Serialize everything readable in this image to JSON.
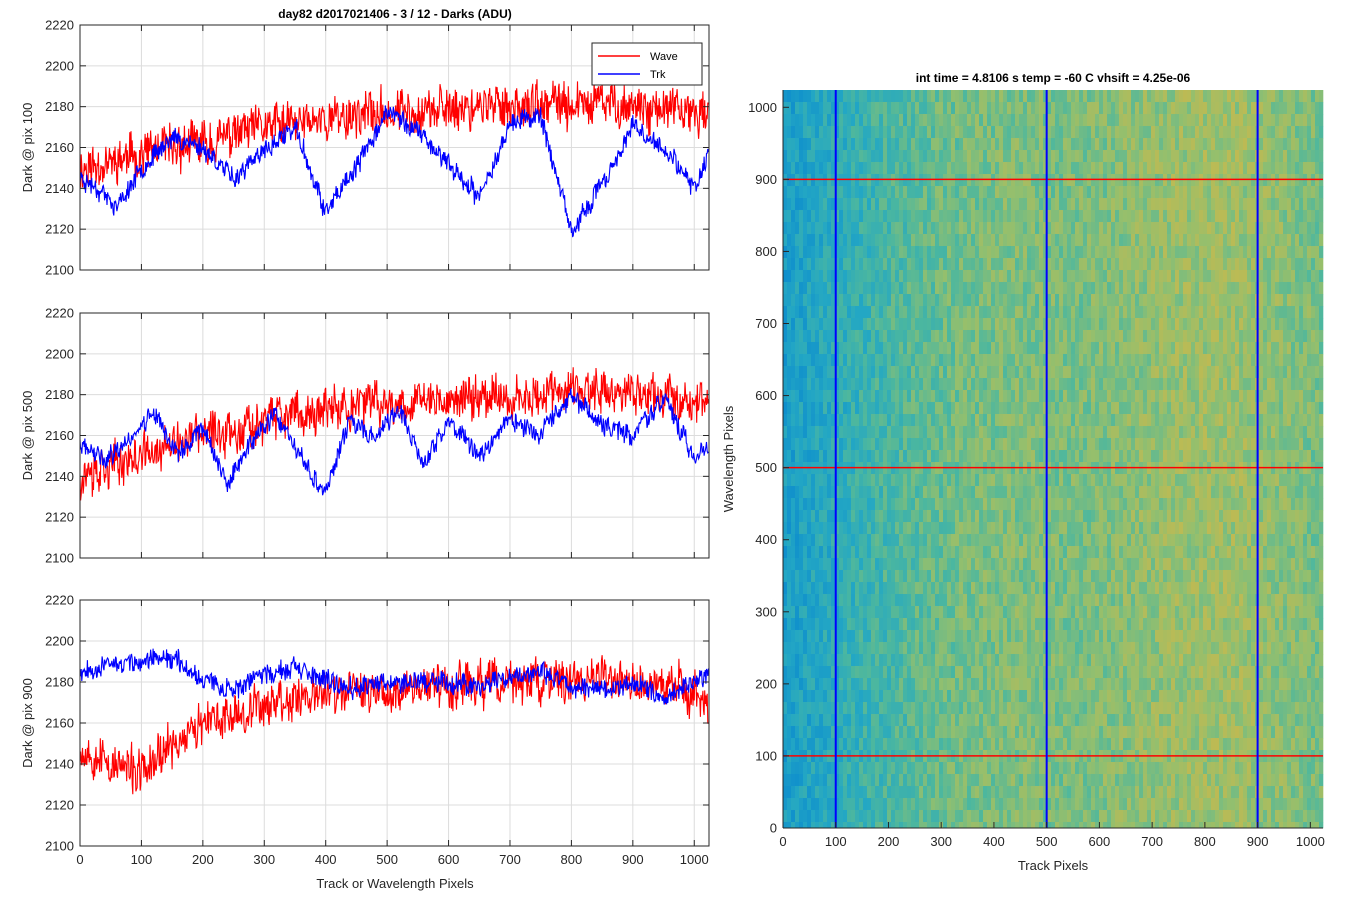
{
  "figure": {
    "title": "day82 d2017021406 - 3 / 12 - Darks (ADU)",
    "shared_xlabel": "Track or Wavelength Pixels"
  },
  "colors": {
    "wave": "#ff0000",
    "trk": "#0000ff",
    "grid": "#dcdcdc",
    "axis": "#262626"
  },
  "chart_data": [
    {
      "type": "line",
      "ylabel": "Dark @ pix 100",
      "xlim": [
        0,
        1024
      ],
      "ylim": [
        2100,
        2220
      ],
      "xticks": [
        0,
        100,
        200,
        300,
        400,
        500,
        600,
        700,
        800,
        900,
        1000
      ],
      "yticks": [
        2100,
        2120,
        2140,
        2160,
        2180,
        2200,
        2220
      ],
      "grid": true,
      "legend": {
        "position": "top-right",
        "entries": [
          "Wave",
          "Trk"
        ]
      },
      "series": [
        {
          "name": "Wave",
          "color": "#ff0000",
          "noise": 11,
          "seed": 11,
          "x": [
            0,
            50,
            100,
            150,
            200,
            250,
            300,
            350,
            400,
            450,
            500,
            550,
            600,
            650,
            700,
            750,
            800,
            850,
            900,
            950,
            1000,
            1024
          ],
          "y": [
            2150,
            2153,
            2157,
            2160,
            2162,
            2166,
            2170,
            2172,
            2174,
            2176,
            2177,
            2178,
            2179,
            2180,
            2181,
            2180,
            2181,
            2182,
            2180,
            2178,
            2177,
            2178
          ]
        },
        {
          "name": "Trk",
          "color": "#0000ff",
          "noise": 5,
          "seed": 23,
          "x": [
            0,
            30,
            60,
            100,
            150,
            200,
            250,
            300,
            350,
            400,
            450,
            500,
            550,
            600,
            650,
            700,
            750,
            800,
            850,
            900,
            950,
            1000,
            1024
          ],
          "y": [
            2145,
            2140,
            2130,
            2150,
            2165,
            2160,
            2145,
            2158,
            2170,
            2128,
            2150,
            2178,
            2168,
            2152,
            2135,
            2172,
            2176,
            2118,
            2142,
            2170,
            2160,
            2140,
            2158
          ]
        }
      ]
    },
    {
      "type": "line",
      "ylabel": "Dark @ pix 500",
      "xlim": [
        0,
        1024
      ],
      "ylim": [
        2100,
        2220
      ],
      "xticks": [
        0,
        100,
        200,
        300,
        400,
        500,
        600,
        700,
        800,
        900,
        1000
      ],
      "yticks": [
        2100,
        2120,
        2140,
        2160,
        2180,
        2200,
        2220
      ],
      "grid": true,
      "series": [
        {
          "name": "Wave",
          "color": "#ff0000",
          "noise": 11,
          "seed": 37,
          "x": [
            0,
            50,
            100,
            150,
            200,
            250,
            300,
            350,
            400,
            450,
            500,
            550,
            600,
            650,
            700,
            750,
            800,
            850,
            900,
            950,
            1000,
            1024
          ],
          "y": [
            2140,
            2145,
            2150,
            2155,
            2160,
            2163,
            2167,
            2170,
            2172,
            2174,
            2176,
            2177,
            2178,
            2179,
            2180,
            2181,
            2182,
            2181,
            2180,
            2179,
            2178,
            2178
          ]
        },
        {
          "name": "Trk",
          "color": "#0000ff",
          "noise": 5,
          "seed": 41,
          "x": [
            0,
            40,
            80,
            120,
            160,
            200,
            240,
            280,
            320,
            360,
            400,
            440,
            480,
            520,
            560,
            600,
            650,
            700,
            750,
            800,
            850,
            900,
            950,
            1000,
            1024
          ],
          "y": [
            2155,
            2148,
            2158,
            2172,
            2150,
            2165,
            2135,
            2158,
            2170,
            2148,
            2132,
            2168,
            2160,
            2172,
            2145,
            2168,
            2150,
            2168,
            2160,
            2180,
            2165,
            2160,
            2178,
            2150,
            2155
          ]
        }
      ]
    },
    {
      "type": "line",
      "ylabel": "Dark @ pix 900",
      "xlabel": "Track or Wavelength Pixels",
      "xlim": [
        0,
        1024
      ],
      "ylim": [
        2100,
        2220
      ],
      "xticks": [
        0,
        100,
        200,
        300,
        400,
        500,
        600,
        700,
        800,
        900,
        1000
      ],
      "yticks": [
        2100,
        2120,
        2140,
        2160,
        2180,
        2200,
        2220
      ],
      "grid": true,
      "series": [
        {
          "name": "Wave",
          "color": "#ff0000",
          "noise": 11,
          "seed": 53,
          "x": [
            0,
            50,
            100,
            150,
            200,
            250,
            300,
            350,
            400,
            450,
            500,
            550,
            600,
            650,
            700,
            750,
            800,
            850,
            900,
            950,
            1000,
            1024
          ],
          "y": [
            2148,
            2140,
            2135,
            2150,
            2158,
            2165,
            2170,
            2172,
            2174,
            2175,
            2176,
            2178,
            2178,
            2179,
            2180,
            2180,
            2181,
            2181,
            2180,
            2178,
            2175,
            2172
          ]
        },
        {
          "name": "Trk",
          "color": "#0000ff",
          "noise": 5,
          "seed": 67,
          "x": [
            0,
            50,
            100,
            150,
            200,
            250,
            300,
            350,
            400,
            450,
            500,
            550,
            600,
            650,
            700,
            750,
            800,
            850,
            900,
            950,
            1000,
            1024
          ],
          "y": [
            2186,
            2188,
            2190,
            2192,
            2182,
            2176,
            2184,
            2186,
            2180,
            2178,
            2180,
            2181,
            2180,
            2179,
            2182,
            2185,
            2178,
            2176,
            2180,
            2172,
            2180,
            2185
          ]
        }
      ]
    },
    {
      "type": "heatmap",
      "title": "int time = 4.8106 s    temp = -60 C    vhsift = 4.25e-06",
      "xlabel": "Track Pixels",
      "ylabel": "Wavelength Pixels",
      "xlim": [
        0,
        1024
      ],
      "ylim": [
        0,
        1024
      ],
      "xticks": [
        0,
        100,
        200,
        300,
        400,
        500,
        600,
        700,
        800,
        900,
        1000
      ],
      "yticks": [
        0,
        100,
        200,
        300,
        400,
        500,
        600,
        700,
        800,
        900,
        1000
      ],
      "colormap": [
        "#0f8fcc",
        "#23a7c4",
        "#4cb79f",
        "#93bf6e",
        "#c9b94c"
      ],
      "column_level": {
        "x": [
          0,
          60,
          150,
          250,
          350,
          450,
          550,
          650,
          750,
          850,
          950,
          1024
        ],
        "v": [
          0.15,
          0.25,
          0.4,
          0.55,
          0.65,
          0.68,
          0.66,
          0.72,
          0.78,
          0.8,
          0.72,
          0.65
        ]
      },
      "overlays": {
        "vertical": {
          "color": "#0000ff",
          "x": [
            100,
            500,
            900
          ]
        },
        "horizontal": {
          "color": "#ff0000",
          "y": [
            100,
            500,
            900
          ]
        }
      }
    }
  ]
}
